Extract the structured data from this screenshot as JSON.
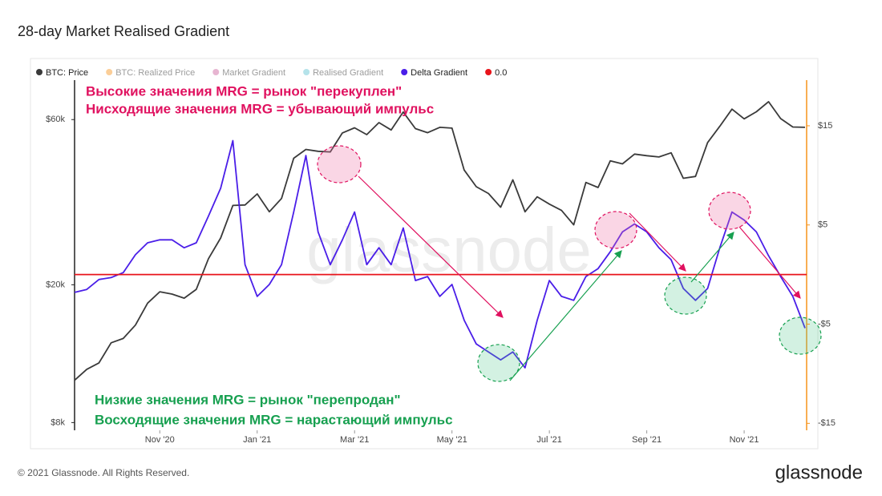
{
  "chart_data": {
    "type": "line",
    "title": "28-day Market Realised Gradient",
    "watermark": "glassnode",
    "yscale": "log",
    "grid": false,
    "legend": "top-left",
    "categories": [
      null,
      null,
      null,
      null,
      null,
      null,
      null,
      "Nov '20",
      null,
      null,
      null,
      null,
      null,
      null,
      null,
      "Jan '21",
      null,
      null,
      null,
      null,
      null,
      null,
      null,
      "Mar '21",
      null,
      null,
      null,
      null,
      null,
      null,
      null,
      "May '21",
      null,
      null,
      null,
      null,
      null,
      null,
      null,
      "Jul '21",
      null,
      null,
      null,
      null,
      null,
      null,
      null,
      "Sep '21",
      null,
      null,
      null,
      null,
      null,
      null,
      null,
      "Nov '21",
      null,
      null,
      null,
      null,
      null
    ],
    "ylim": [
      7600,
      78000
    ],
    "yticks": [
      {
        "value": 8000,
        "label": "$8k"
      },
      {
        "value": 20000,
        "label": "$20k"
      },
      {
        "value": 60000,
        "label": "$60k"
      }
    ],
    "y2lim": [
      -15.7,
      19.6
    ],
    "y2ticks": [
      {
        "value": 15,
        "label": "$15"
      },
      {
        "value": 5,
        "label": "$5"
      },
      {
        "value": -5,
        "label": "-$5"
      },
      {
        "value": -15,
        "label": "-$15"
      }
    ],
    "series": [
      {
        "name": "BTC: Price",
        "color": "#3a3a3a",
        "axis": "y",
        "values": [
          10600,
          11400,
          11900,
          13600,
          14000,
          15300,
          17700,
          19100,
          18800,
          18300,
          19400,
          23800,
          27300,
          33900,
          34000,
          36600,
          32500,
          35500,
          46400,
          49200,
          48600,
          48400,
          54900,
          56800,
          54300,
          58800,
          56000,
          63100,
          56500,
          55000,
          57000,
          56700,
          42900,
          38400,
          36700,
          33500,
          40200,
          32500,
          35900,
          34200,
          32800,
          29800,
          39500,
          38200,
          45600,
          44700,
          47700,
          47200,
          46800,
          48100,
          40600,
          41100,
          51500,
          57400,
          64300,
          60300,
          63200,
          67600,
          60400,
          57100,
          57000
        ]
      },
      {
        "name": "BTC: Realized Price",
        "color": "#f7931a",
        "hidden": true
      },
      {
        "name": "Market Gradient",
        "color": "#c95a9a",
        "hidden": true
      },
      {
        "name": "Realised Gradient",
        "color": "#5bc0d0",
        "hidden": true
      },
      {
        "name": "Delta Gradient",
        "color": "#4a1ee8",
        "axis": "y2",
        "values": [
          -1.8,
          -1.5,
          -0.5,
          -0.3,
          0.2,
          2,
          3.2,
          3.5,
          3.5,
          2.7,
          3.2,
          5.9,
          8.7,
          13.5,
          1,
          -2.2,
          -1,
          1,
          6.3,
          12,
          4.3,
          1,
          3.5,
          6.3,
          1,
          2.7,
          1,
          4.7,
          -0.6,
          -0.2,
          -2.2,
          -1,
          -4.6,
          -7,
          -7.8,
          -8.6,
          -7.8,
          -9.4,
          -4.6,
          -0.6,
          -2.2,
          -2.6,
          -0.2,
          0.6,
          2.3,
          4.3,
          5.1,
          4.3,
          2.7,
          1.5,
          -1.4,
          -2.6,
          -1.4,
          2.7,
          6.3,
          5.5,
          4.3,
          1.9,
          -0.2,
          -2.2,
          -5.4
        ]
      },
      {
        "name": "0.0",
        "color": "#e8141b",
        "axis": "y2",
        "value": 0
      }
    ],
    "annotations": [
      {
        "text": "Высокие значения MRG = рынок \"перекуплен\"",
        "color": "#e0115f"
      },
      {
        "text": "Нисходящие значения MRG = убывающий импульс",
        "color": "#e0115f"
      },
      {
        "text": "Низкие значения MRG = рынок \"перепродан\"",
        "color": "#17a050"
      },
      {
        "text": "Восходящие значения MRG = нарастающий импульс",
        "color": "#17a050"
      }
    ]
  },
  "footer": {
    "copyright": "© 2021 Glassnode. All Rights Reserved.",
    "logo": "glassnode"
  }
}
